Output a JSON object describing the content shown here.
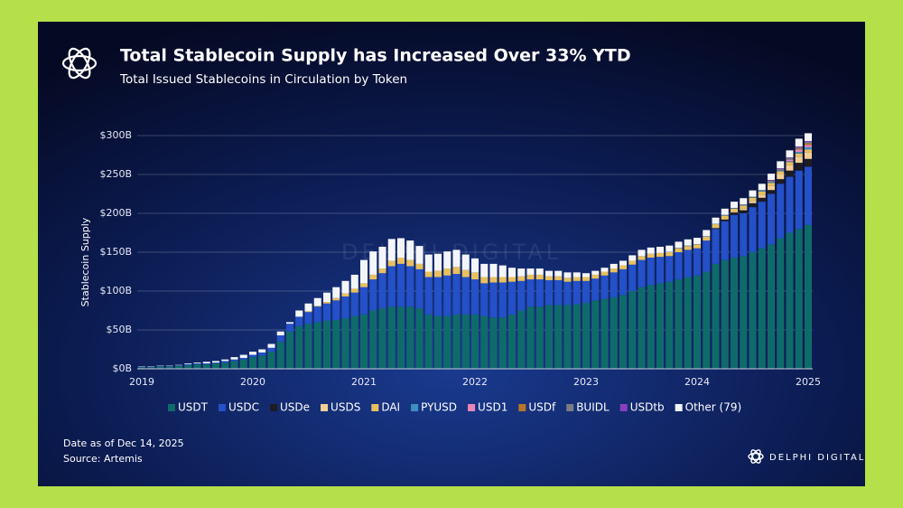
{
  "chart_data": {
    "type": "stacked_bar",
    "title": "Total Stablecoin Supply has Increased Over 33% YTD",
    "subtitle": "Total Issued Stablecoins in Circulation by Token",
    "y_label": "Stablecoin Supply",
    "note": "Date as of Dec 14, 2025",
    "source": "Source: Artemis",
    "brand": "DELPHI DIGITAL",
    "watermark": "DELPHI DIGITAL",
    "legend": "bottom",
    "grid": true,
    "ylim": [
      0,
      300
    ],
    "yticks": [
      {
        "value": 0,
        "label": "$0B"
      },
      {
        "value": 50,
        "label": "$50B"
      },
      {
        "value": 100,
        "label": "$100B"
      },
      {
        "value": 150,
        "label": "$150B"
      },
      {
        "value": 200,
        "label": "$200B"
      },
      {
        "value": 250,
        "label": "$250B"
      },
      {
        "value": 300,
        "label": "$300B"
      }
    ],
    "categories": [
      "2019",
      null,
      null,
      null,
      null,
      null,
      null,
      null,
      null,
      null,
      null,
      null,
      "2020",
      null,
      null,
      null,
      null,
      null,
      null,
      null,
      null,
      null,
      null,
      null,
      "2021",
      null,
      null,
      null,
      null,
      null,
      null,
      null,
      null,
      null,
      null,
      null,
      "2022",
      null,
      null,
      null,
      null,
      null,
      null,
      null,
      null,
      null,
      null,
      null,
      "2023",
      null,
      null,
      null,
      null,
      null,
      null,
      null,
      null,
      null,
      null,
      null,
      "2024",
      null,
      null,
      null,
      null,
      null,
      null,
      null,
      null,
      null,
      null,
      null,
      "2025"
    ],
    "series": [
      {
        "name": "USDT",
        "color": "#0f6b6a",
        "values": [
          2,
          2,
          3,
          3,
          4,
          5,
          6,
          6,
          7,
          8,
          10,
          12,
          15,
          17,
          22,
          35,
          48,
          55,
          58,
          60,
          62,
          63,
          65,
          68,
          70,
          75,
          78,
          80,
          80,
          80,
          78,
          70,
          68,
          68,
          70,
          70,
          70,
          68,
          66,
          66,
          70,
          75,
          80,
          80,
          82,
          82,
          82,
          83,
          85,
          88,
          90,
          92,
          95,
          100,
          105,
          108,
          110,
          112,
          115,
          118,
          120,
          125,
          135,
          140,
          143,
          145,
          150,
          155,
          160,
          168,
          175,
          180,
          185
        ]
      },
      {
        "name": "USDC",
        "color": "#2450c8",
        "values": [
          0.5,
          0.5,
          0.5,
          0.5,
          0.5,
          1,
          1,
          1,
          1,
          2,
          2,
          2,
          3,
          4,
          5,
          8,
          10,
          12,
          15,
          20,
          22,
          25,
          28,
          30,
          35,
          40,
          45,
          52,
          55,
          52,
          50,
          48,
          50,
          52,
          52,
          48,
          45,
          42,
          45,
          45,
          42,
          38,
          35,
          35,
          32,
          32,
          30,
          30,
          28,
          28,
          30,
          32,
          33,
          34,
          35,
          35,
          34,
          33,
          35,
          35,
          35,
          40,
          45,
          50,
          55,
          55,
          58,
          60,
          65,
          70,
          72,
          75,
          75
        ]
      },
      {
        "name": "USDe",
        "color": "#1c1c22",
        "values": [
          0,
          0,
          0,
          0,
          0,
          0,
          0,
          0,
          0,
          0,
          0,
          0,
          0,
          0,
          0,
          0,
          0,
          0,
          0,
          0,
          0,
          0,
          0,
          0,
          0,
          0,
          0,
          0,
          0,
          0,
          0,
          0,
          0,
          0,
          0,
          0,
          0,
          0,
          0,
          0,
          0,
          0,
          0,
          0,
          0,
          0,
          0,
          0,
          0,
          0,
          0,
          0,
          0,
          0,
          0,
          0,
          0,
          0,
          0,
          0,
          0,
          0,
          1,
          2,
          3,
          4,
          5,
          5,
          5,
          6,
          8,
          10,
          10
        ]
      },
      {
        "name": "USDS",
        "color": "#f3cf95",
        "values": [
          0,
          0,
          0,
          0,
          0,
          0,
          0,
          0,
          0,
          0,
          0,
          0,
          0,
          0,
          0,
          0,
          0,
          0,
          0,
          0,
          0,
          0,
          0,
          0,
          0,
          0,
          0,
          0,
          0,
          0,
          0,
          0,
          0,
          0,
          0,
          0,
          0,
          0,
          0,
          0,
          0,
          0,
          0,
          0,
          0,
          0,
          0,
          0,
          0,
          0,
          0,
          0,
          0,
          0,
          0,
          0,
          0,
          0,
          0,
          0,
          0,
          0,
          0,
          0,
          1,
          2,
          3,
          4,
          5,
          6,
          7,
          8,
          8
        ]
      },
      {
        "name": "DAI",
        "color": "#e8c060",
        "values": [
          0,
          0,
          0,
          0,
          0,
          0,
          0,
          0,
          0,
          0,
          0,
          0,
          0,
          0,
          0,
          0,
          0,
          0,
          1,
          1,
          2,
          3,
          4,
          5,
          5,
          6,
          6,
          7,
          8,
          8,
          7,
          7,
          8,
          9,
          9,
          9,
          9,
          8,
          7,
          7,
          6,
          6,
          6,
          6,
          5,
          5,
          5,
          5,
          5,
          5,
          5,
          5,
          5,
          5,
          5,
          5,
          5,
          5,
          5,
          5,
          5,
          5,
          5,
          5,
          4,
          4,
          4,
          4,
          4,
          4,
          4,
          4,
          4
        ]
      },
      {
        "name": "PYUSD",
        "color": "#3f8fc0",
        "values": [
          0,
          0,
          0,
          0,
          0,
          0,
          0,
          0,
          0,
          0,
          0,
          0,
          0,
          0,
          0,
          0,
          0,
          0,
          0,
          0,
          0,
          0,
          0,
          0,
          0,
          0,
          0,
          0,
          0,
          0,
          0,
          0,
          0,
          0,
          0,
          0,
          0,
          0,
          0,
          0,
          0,
          0,
          0,
          0,
          0,
          0,
          0,
          0,
          0,
          0,
          0,
          0,
          0,
          0,
          0,
          0,
          0,
          0.5,
          0.5,
          0.5,
          0.5,
          0.5,
          0.5,
          0.5,
          0.5,
          0.5,
          0.5,
          1,
          1,
          1,
          1,
          2,
          3
        ]
      },
      {
        "name": "USD1",
        "color": "#e887b6",
        "values": [
          0,
          0,
          0,
          0,
          0,
          0,
          0,
          0,
          0,
          0,
          0,
          0,
          0,
          0,
          0,
          0,
          0,
          0,
          0,
          0,
          0,
          0,
          0,
          0,
          0,
          0,
          0,
          0,
          0,
          0,
          0,
          0,
          0,
          0,
          0,
          0,
          0,
          0,
          0,
          0,
          0,
          0,
          0,
          0,
          0,
          0,
          0,
          0,
          0,
          0,
          0,
          0,
          0,
          0,
          0,
          0,
          0,
          0,
          0,
          0,
          0,
          0,
          0,
          0,
          0,
          0,
          0,
          0,
          0,
          0,
          2,
          3,
          3
        ]
      },
      {
        "name": "USDf",
        "color": "#b5762a",
        "values": [
          0,
          0,
          0,
          0,
          0,
          0,
          0,
          0,
          0,
          0,
          0,
          0,
          0,
          0,
          0,
          0,
          0,
          0,
          0,
          0,
          0,
          0,
          0,
          0,
          0,
          0,
          0,
          0,
          0,
          0,
          0,
          0,
          0,
          0,
          0,
          0,
          0,
          0,
          0,
          0,
          0,
          0,
          0,
          0,
          0,
          0,
          0,
          0,
          0,
          0,
          0,
          0,
          0,
          0,
          0,
          0,
          0,
          0,
          0,
          0,
          0,
          0,
          0,
          0,
          0,
          0,
          0,
          0,
          0,
          0,
          0,
          1,
          2
        ]
      },
      {
        "name": "BUIDL",
        "color": "#7a7d85",
        "values": [
          0,
          0,
          0,
          0,
          0,
          0,
          0,
          0,
          0,
          0,
          0,
          0,
          0,
          0,
          0,
          0,
          0,
          0,
          0,
          0,
          0,
          0,
          0,
          0,
          0,
          0,
          0,
          0,
          0,
          0,
          0,
          0,
          0,
          0,
          0,
          0,
          0,
          0,
          0,
          0,
          0,
          0,
          0,
          0,
          0,
          0,
          0,
          0,
          0,
          0,
          0,
          0,
          0,
          0,
          0,
          0,
          0,
          0,
          0,
          0,
          0,
          0,
          0,
          0.5,
          0.5,
          1,
          1,
          1,
          2,
          2,
          2,
          2,
          2
        ]
      },
      {
        "name": "USDtb",
        "color": "#8a3fc0",
        "values": [
          0,
          0,
          0,
          0,
          0,
          0,
          0,
          0,
          0,
          0,
          0,
          0,
          0,
          0,
          0,
          0,
          0,
          0,
          0,
          0,
          0,
          0,
          0,
          0,
          0,
          0,
          0,
          0,
          0,
          0,
          0,
          0,
          0,
          0,
          0,
          0,
          0,
          0,
          0,
          0,
          0,
          0,
          0,
          0,
          0,
          0,
          0,
          0,
          0,
          0,
          0,
          0,
          0,
          0,
          0,
          0,
          0,
          0,
          0,
          0,
          0,
          0,
          0,
          0,
          0,
          0,
          0,
          0,
          1,
          1,
          1,
          1,
          1
        ]
      },
      {
        "name": "Other (79)",
        "color": "#f4f5f8",
        "values": [
          0.5,
          0.5,
          0.5,
          0.5,
          0.5,
          1,
          1,
          2,
          2,
          2,
          3,
          4,
          4,
          4,
          5,
          5,
          2,
          8,
          10,
          10,
          12,
          14,
          16,
          18,
          30,
          30,
          28,
          28,
          25,
          25,
          23,
          22,
          22,
          22,
          22,
          20,
          18,
          17,
          17,
          15,
          12,
          10,
          8,
          8,
          7,
          7,
          7,
          6,
          5,
          5,
          5,
          6,
          6,
          7,
          8,
          8,
          8,
          8,
          8,
          8,
          8,
          8,
          8,
          8,
          8,
          8,
          8,
          8,
          8,
          9,
          9,
          10,
          10
        ]
      }
    ]
  }
}
